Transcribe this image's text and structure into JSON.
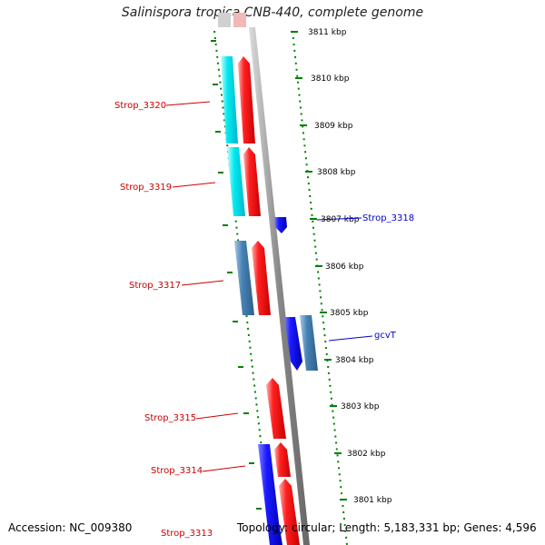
{
  "title": "Salinispora tropica CNB-440, complete genome",
  "accession": "Accession: NC_009380",
  "footer_info": "Topology: circular; Length: 5,183,331 bp; Genes: 4,596",
  "colors": {
    "forward_gene": "#ff0000",
    "reverse_gene": "#0000ee",
    "cyan_feature": "#00e0e8",
    "steelblue_feature": "#4682b4",
    "backbone": "#8a8a8a",
    "tick": "#008000",
    "label_red": "#cc0000",
    "label_blue": "#0000cc"
  },
  "ruler": [
    {
      "label": "3811 kbp",
      "kbp": 3811
    },
    {
      "label": "3810 kbp",
      "kbp": 3810
    },
    {
      "label": "3809 kbp",
      "kbp": 3809
    },
    {
      "label": "3808 kbp",
      "kbp": 3808
    },
    {
      "label": "3807 kbp",
      "kbp": 3807
    },
    {
      "label": "3806 kbp",
      "kbp": 3806
    },
    {
      "label": "3805 kbp",
      "kbp": 3805
    },
    {
      "label": "3804 kbp",
      "kbp": 3804
    },
    {
      "label": "3803 kbp",
      "kbp": 3803
    },
    {
      "label": "3802 kbp",
      "kbp": 3802
    },
    {
      "label": "3801 kbp",
      "kbp": 3801
    }
  ],
  "gene_labels": [
    {
      "name": "Strop_3320",
      "side": "left",
      "color": "red"
    },
    {
      "name": "Strop_3319",
      "side": "left",
      "color": "red"
    },
    {
      "name": "Strop_3318",
      "side": "right",
      "color": "blue"
    },
    {
      "name": "Strop_3317",
      "side": "left",
      "color": "red"
    },
    {
      "name": "gcvT",
      "side": "right",
      "color": "blue"
    },
    {
      "name": "Strop_3315",
      "side": "left",
      "color": "red"
    },
    {
      "name": "Strop_3314",
      "side": "left",
      "color": "red"
    },
    {
      "name": "Strop_3313",
      "side": "left",
      "color": "red"
    }
  ]
}
